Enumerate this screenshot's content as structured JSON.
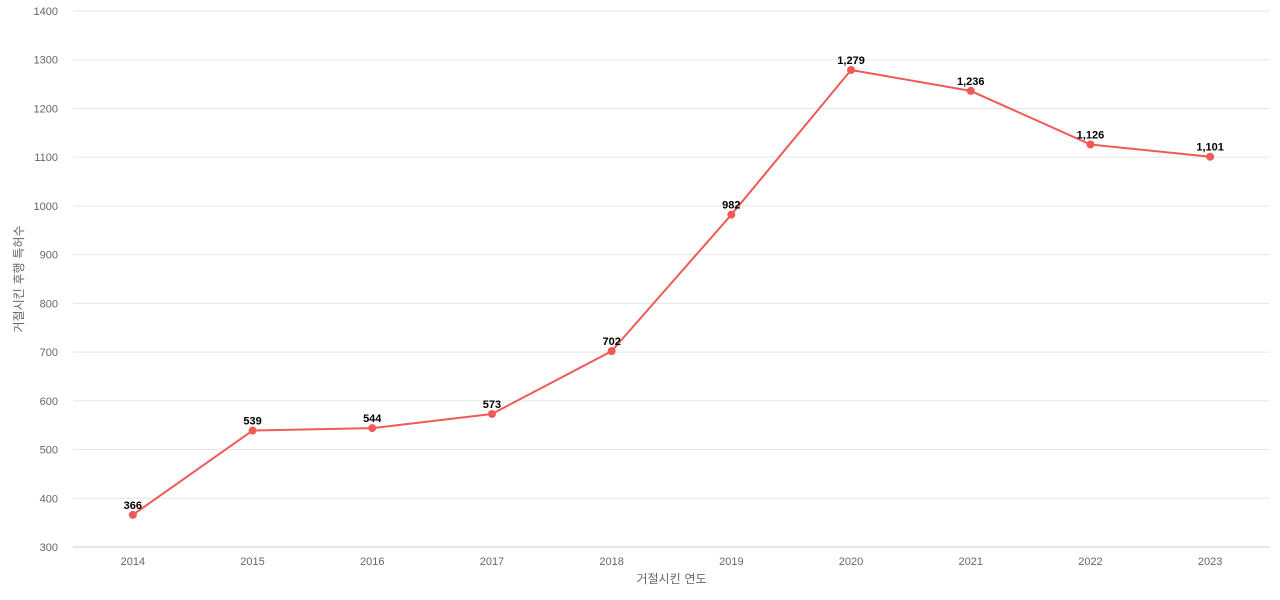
{
  "chart_data": {
    "type": "line",
    "title": "",
    "xlabel": "거절시킨 연도",
    "ylabel": "거절시킨 후행 특허수",
    "categories": [
      "2014",
      "2015",
      "2016",
      "2017",
      "2018",
      "2019",
      "2020",
      "2021",
      "2022",
      "2023"
    ],
    "series": [
      {
        "values": [
          366,
          539,
          544,
          573,
          702,
          982,
          1279,
          1236,
          1126,
          1101
        ],
        "data_labels": [
          "366",
          "539",
          "544",
          "573",
          "702",
          "982",
          "1,279",
          "1,236",
          "1,126",
          "1,101"
        ],
        "color": "#ef5a57"
      }
    ],
    "ylim": [
      300,
      1400
    ],
    "yticks": [
      300,
      400,
      500,
      600,
      700,
      800,
      900,
      1000,
      1100,
      1200,
      1300,
      1400
    ],
    "grid": true,
    "legend": "none"
  }
}
